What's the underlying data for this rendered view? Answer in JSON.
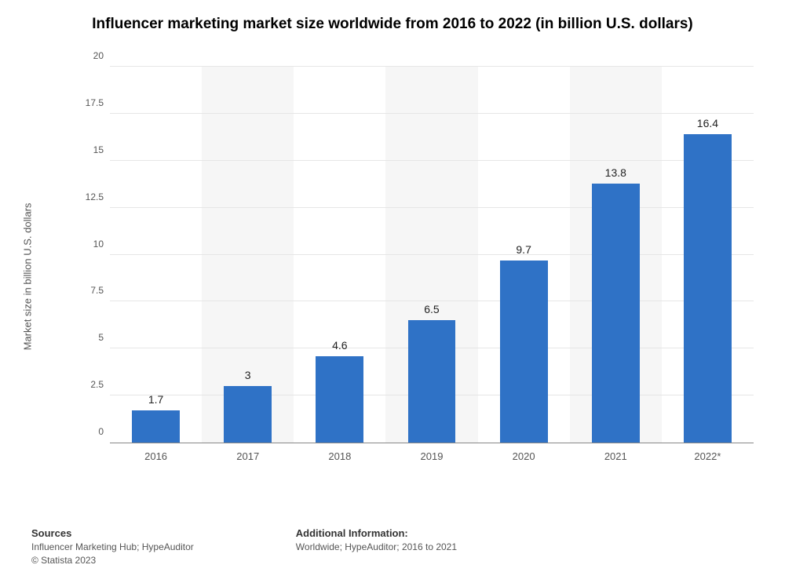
{
  "chart": {
    "type": "bar",
    "title": "Influencer marketing market size worldwide from 2016 to 2022 (in billion U.S. dollars)",
    "title_fontsize": 19,
    "title_color": "#000000",
    "ylabel": "Market size in billion U.S. dollars",
    "ylabel_fontsize": 13,
    "categories": [
      "2016",
      "2017",
      "2018",
      "2019",
      "2020",
      "2021",
      "2022*"
    ],
    "values": [
      1.7,
      3,
      4.6,
      6.5,
      9.7,
      13.8,
      16.4
    ],
    "value_labels": [
      "1.7",
      "3",
      "4.6",
      "6.5",
      "9.7",
      "13.8",
      "16.4"
    ],
    "bar_color": "#2f72c6",
    "bar_width_ratio": 0.52,
    "ylim": [
      0,
      20
    ],
    "ytick_step": 2.5,
    "yticks": [
      "0",
      "2.5",
      "5",
      "7.5",
      "10",
      "12.5",
      "15",
      "17.5",
      "20"
    ],
    "grid_color": "#e6e6e6",
    "stripe_color": "#f6f6f6",
    "background_color": "#ffffff",
    "axis_color": "#888888",
    "tick_label_color": "#555555",
    "bar_label_fontsize": 14,
    "xtick_fontsize": 13,
    "ytick_fontsize": 12
  },
  "footer": {
    "sources_heading": "Sources",
    "sources_line1": "Influencer Marketing Hub; HypeAuditor",
    "sources_line2": "© Statista 2023",
    "info_heading": "Additional Information:",
    "info_line1": "Worldwide; HypeAuditor; 2016 to 2021"
  }
}
